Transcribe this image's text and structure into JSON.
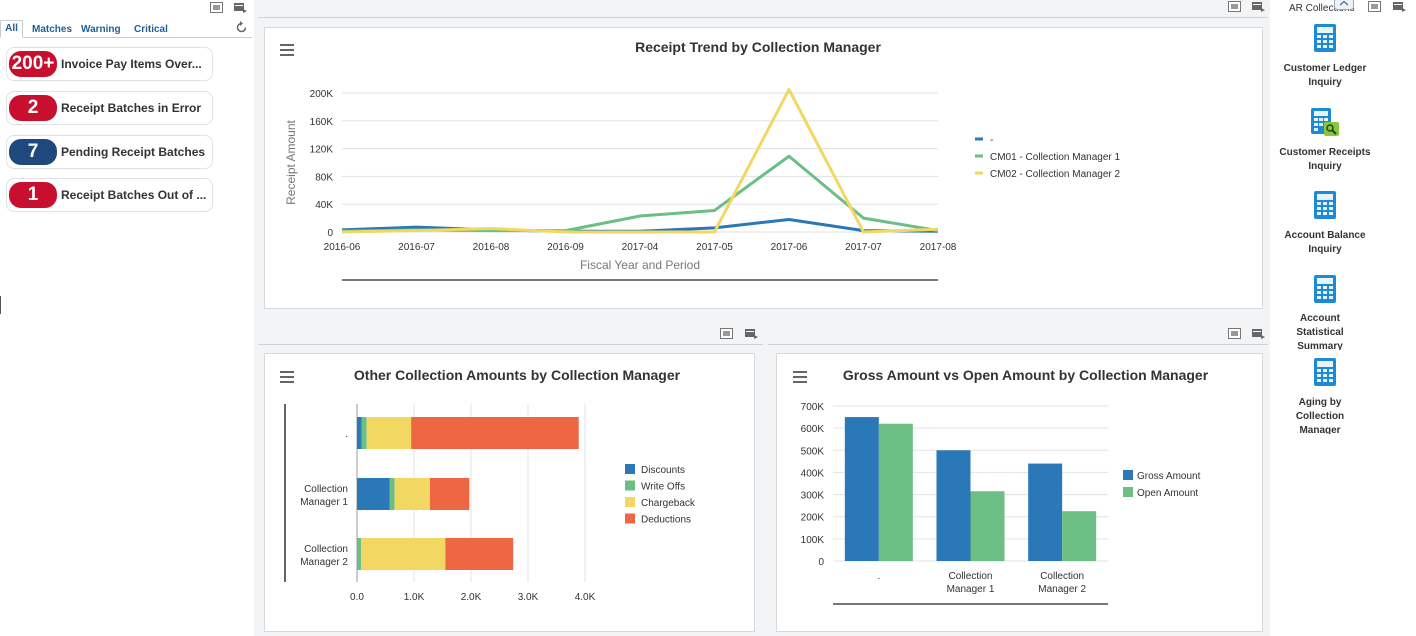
{
  "watchlist": {
    "tabs": [
      "All",
      "Matches",
      "Warning",
      "Critical"
    ],
    "items": [
      {
        "count": "200+",
        "label": "Invoice Pay Items Over...",
        "color": "#c8102e"
      },
      {
        "count": "2",
        "label": "Receipt Batches in Error",
        "color": "#c8102e"
      },
      {
        "count": "7",
        "label": "Pending Receipt Batches",
        "color": "#1f497d"
      },
      {
        "count": "1",
        "label": "Receipt Batches Out of ...",
        "color": "#c8102e"
      }
    ]
  },
  "springboard": {
    "title": "AR Collections",
    "items": [
      {
        "label": "Customer Ledger Inquiry"
      },
      {
        "label": "Customer Receipts Inquiry"
      },
      {
        "label": "Account Balance Inquiry"
      },
      {
        "label": "Account Statistical Summary"
      },
      {
        "label": "Aging by Collection Manager"
      }
    ]
  },
  "chart_data": [
    {
      "type": "line",
      "title": "Receipt Trend by Collection Manager",
      "xlabel": "Fiscal Year and Period",
      "ylabel": "Receipt Amount",
      "ylim": [
        0,
        200000
      ],
      "ytick_labels": [
        "0",
        "40K",
        "80K",
        "120K",
        "160K",
        "200K"
      ],
      "categories": [
        "2016-06",
        "2016-07",
        "2016-08",
        "2016-09",
        "2017-04",
        "2017-05",
        "2017-06",
        "2017-07",
        "2017-08"
      ],
      "series": [
        {
          "name": "-",
          "color": "#2a78b8",
          "values": [
            3000,
            7000,
            3000,
            1000,
            1000,
            6000,
            18000,
            2000,
            1000
          ]
        },
        {
          "name": "CM01 - Collection Manager 1",
          "color": "#6cbf84",
          "values": [
            1000,
            3000,
            2000,
            2000,
            23000,
            31000,
            109000,
            20000,
            2000
          ]
        },
        {
          "name": "CM02 - Collection Manager 2",
          "color": "#f2d862",
          "values": [
            0,
            2000,
            5000,
            0,
            0,
            0,
            205000,
            0,
            4000
          ]
        }
      ]
    },
    {
      "type": "bar",
      "orientation": "horizontal",
      "stacked": true,
      "title": "Other Collection Amounts by Collection Manager",
      "categories": [
        ".",
        "Collection Manager 1",
        "Collection Manager 2"
      ],
      "xlim": [
        0,
        4000
      ],
      "xtick_labels": [
        "0.0",
        "1.0K",
        "2.0K",
        "3.0K",
        "4.0K"
      ],
      "series": [
        {
          "name": "Discounts",
          "color": "#2a78b8",
          "values": [
            80,
            570,
            0
          ]
        },
        {
          "name": "Write Offs",
          "color": "#6cbf84",
          "values": [
            90,
            90,
            70
          ]
        },
        {
          "name": "Chargeback",
          "color": "#f2d862",
          "values": [
            780,
            620,
            1480
          ]
        },
        {
          "name": "Deductions",
          "color": "#ef6643",
          "values": [
            2940,
            690,
            1190
          ]
        }
      ]
    },
    {
      "type": "bar",
      "title": "Gross Amount vs Open Amount by Collection Manager",
      "categories": [
        ".",
        "Collection Manager 1",
        "Collection Manager 2"
      ],
      "ylim": [
        0,
        700000
      ],
      "ytick_labels": [
        "0",
        "100K",
        "200K",
        "300K",
        "400K",
        "500K",
        "600K",
        "700K"
      ],
      "series": [
        {
          "name": "Gross Amount",
          "color": "#2a78b8",
          "values": [
            650000,
            500000,
            440000
          ]
        },
        {
          "name": "Open Amount",
          "color": "#6cbf84",
          "values": [
            620000,
            315000,
            225000
          ]
        }
      ]
    }
  ]
}
